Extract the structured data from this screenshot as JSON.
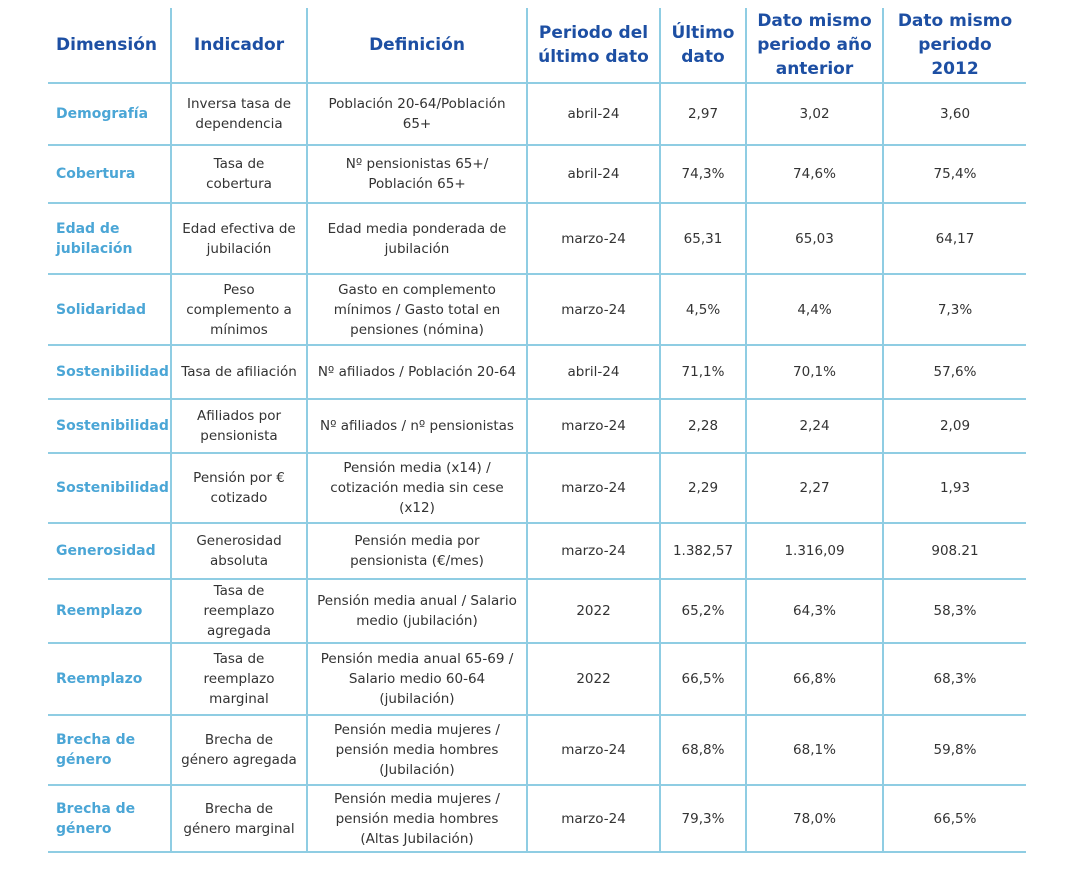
{
  "headers": [
    "Dimensión",
    "Indicador",
    "Definición",
    "Periodo del último dato",
    "Último dato",
    "Dato mismo periodo año anterior",
    "Dato mismo periodo 2012"
  ],
  "rows": [
    [
      "Demografía",
      "Inversa tasa de dependencia",
      "Población 20-64/Población 65+",
      "abril-24",
      "2,97",
      "3,02",
      "3,60"
    ],
    [
      "Cobertura",
      "Tasa de cobertura",
      "Nº pensionistas 65+/ Población 65+",
      "abril-24",
      "74,3%",
      "74,6%",
      "75,4%"
    ],
    [
      "Edad de jubilación",
      "Edad efectiva de jubilación",
      "Edad media ponderada de jubilación",
      "marzo-24",
      "65,31",
      "65,03",
      "64,17"
    ],
    [
      "Solidaridad",
      "Peso complemento a mínimos",
      "Gasto en complemento mínimos / Gasto total en pensiones (nómina)",
      "marzo-24",
      "4,5%",
      "4,4%",
      "7,3%"
    ],
    [
      "Sostenibilidad",
      "Tasa de afiliación",
      "Nº afiliados / Población 20-64",
      "abril-24",
      "71,1%",
      "70,1%",
      "57,6%"
    ],
    [
      "Sostenibilidad",
      "Afiliados por pensionista",
      "Nº afiliados / nº pensionistas",
      "marzo-24",
      "2,28",
      "2,24",
      "2,09"
    ],
    [
      "Sostenibilidad",
      "Pensión por € cotizado",
      "Pensión media (x14) / cotización media sin cese (x12)",
      "marzo-24",
      "2,29",
      "2,27",
      "1,93"
    ],
    [
      "Generosidad",
      "Generosidad absoluta",
      "Pensión media por pensionista (€/mes)",
      "marzo-24",
      "1.382,57",
      "1.316,09",
      "908.21"
    ],
    [
      "Reemplazo",
      "Tasa de reemplazo agregada",
      "Pensión media anual / Salario medio (jubilación)",
      "2022",
      "65,2%",
      "64,3%",
      "58,3%"
    ],
    [
      "Reemplazo",
      "Tasa de reemplazo marginal",
      "Pensión media anual 65-69 / Salario medio 60-64 (jubilación)",
      "2022",
      "66,5%",
      "66,8%",
      "68,3%"
    ],
    [
      "Brecha de género",
      "Brecha de género agregada",
      "Pensión media mujeres / pensión media hombres (Jubilación)",
      "marzo-24",
      "68,8%",
      "68,1%",
      "59,8%"
    ],
    [
      "Brecha de género",
      "Brecha de género marginal",
      "Pensión media mujeres / pensión media hombres (Altas Jubilación)",
      "marzo-24",
      "79,3%",
      "78,0%",
      "66,5%"
    ]
  ],
  "colors": {
    "header_text": "#1d4fa3",
    "dimension_text": "#4ba6d6",
    "grid": "#8fcde3"
  }
}
